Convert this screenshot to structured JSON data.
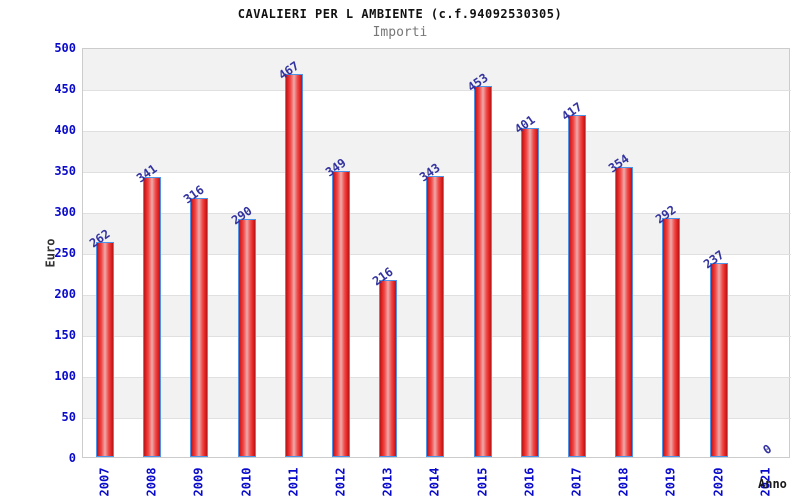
{
  "header": {
    "title": "CAVALIERI PER L AMBIENTE (c.f.94092530305)",
    "subtitle": "Importi"
  },
  "chart_data": {
    "type": "bar",
    "title": "CAVALIERI PER L AMBIENTE (c.f.94092530305)",
    "subtitle": "Importi",
    "categories": [
      "2007",
      "2008",
      "2009",
      "2010",
      "2011",
      "2012",
      "2013",
      "2014",
      "2015",
      "2016",
      "2017",
      "2018",
      "2019",
      "2020",
      "2021"
    ],
    "values": [
      262,
      341,
      316,
      290,
      467,
      349,
      216,
      343,
      453,
      401,
      417,
      354,
      292,
      237,
      0
    ],
    "xlabel": "Anno",
    "ylabel": "Euro",
    "ylim": [
      0,
      500
    ],
    "ytick_step": 50,
    "yticks": [
      500,
      450,
      400,
      350,
      300,
      250,
      200,
      150,
      100,
      50,
      0
    ],
    "grid": true,
    "legend_position": "none",
    "colors": {
      "bar_edge": "#b51717",
      "bar_mid": "#edabab",
      "bar_border": "#4d94e8",
      "tick_label": "#0a0acc",
      "value_label": "#3333a0",
      "band_gray": "#f2f2f2",
      "band_white": "#ffffff",
      "plot_border": "#cccccc",
      "title": "#111111",
      "subtitle": "#777777",
      "axis_title": "#333333"
    }
  }
}
